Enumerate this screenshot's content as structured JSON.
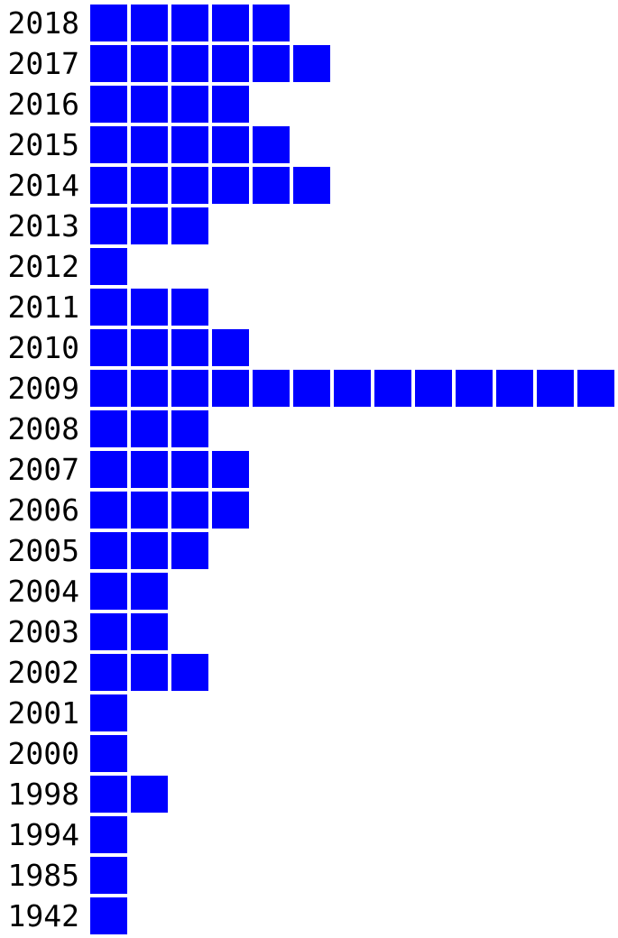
{
  "chart_data": {
    "type": "bar",
    "categories": [
      "2018",
      "2017",
      "2016",
      "2015",
      "2014",
      "2013",
      "2012",
      "2011",
      "2010",
      "2009",
      "2008",
      "2007",
      "2006",
      "2005",
      "2004",
      "2003",
      "2002",
      "2001",
      "2000",
      "1998",
      "1994",
      "1985",
      "1942"
    ],
    "values": [
      5,
      6,
      4,
      5,
      6,
      3,
      1,
      3,
      4,
      13,
      3,
      4,
      4,
      3,
      2,
      2,
      3,
      1,
      1,
      2,
      1,
      1,
      1
    ],
    "orientation": "horizontal",
    "style": "unit-squares",
    "colors": {
      "square": "#0000ff"
    }
  }
}
